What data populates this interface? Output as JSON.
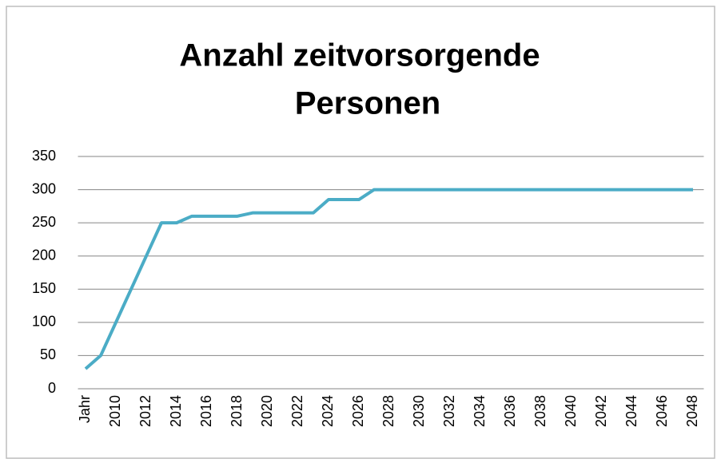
{
  "chart_data": {
    "type": "line",
    "title": [
      "Anzahl zeitvorsorgende",
      "Personen"
    ],
    "categories": [
      "Jahr",
      null,
      "2010",
      null,
      "2012",
      null,
      "2014",
      null,
      "2016",
      null,
      "2018",
      null,
      "2020",
      null,
      "2022",
      null,
      "2024",
      null,
      "2026",
      null,
      "2028",
      null,
      "2030",
      null,
      "2032",
      null,
      "2034",
      null,
      "2036",
      null,
      "2038",
      null,
      "2040",
      null,
      "2042",
      null,
      "2044",
      null,
      "2046",
      null,
      "2048"
    ],
    "values": [
      30,
      50,
      100,
      150,
      200,
      250,
      250,
      260,
      260,
      260,
      260,
      265,
      265,
      265,
      265,
      265,
      285,
      285,
      285,
      300,
      300,
      300,
      300,
      300,
      300,
      300,
      300,
      300,
      300,
      300,
      300,
      300,
      300,
      300,
      300,
      300,
      300,
      300,
      300,
      300,
      300
    ],
    "color": "#4bacc6",
    "ylim": [
      0,
      350
    ],
    "yticks": [
      0,
      50,
      100,
      150,
      200,
      250,
      300,
      350
    ],
    "grid": true
  }
}
